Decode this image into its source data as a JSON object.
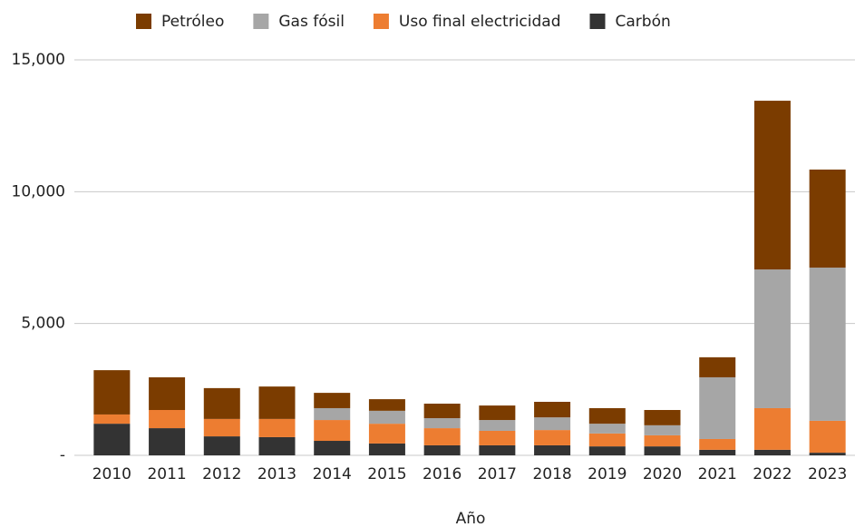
{
  "chart_data": {
    "type": "stacked_bar",
    "x_label": "Año",
    "categories": [
      "2010",
      "2011",
      "2012",
      "2013",
      "2014",
      "2015",
      "2016",
      "2017",
      "2018",
      "2019",
      "2020",
      "2021",
      "2022",
      "2023"
    ],
    "series": [
      {
        "name": "Petróleo",
        "color": "#7b3c00",
        "values": [
          1680,
          1240,
          1170,
          1230,
          580,
          440,
          550,
          550,
          590,
          590,
          580,
          760,
          6400,
          3720
        ]
      },
      {
        "name": "Gas fósil",
        "color": "#a6a6a6",
        "values": [
          0,
          0,
          0,
          0,
          450,
          490,
          380,
          410,
          480,
          370,
          380,
          2340,
          5260,
          5810
        ]
      },
      {
        "name": "Uso final electricidad",
        "color": "#ed7d31",
        "values": [
          350,
          690,
          660,
          690,
          790,
          750,
          650,
          550,
          580,
          490,
          420,
          410,
          1580,
          1210
        ]
      },
      {
        "name": "Carbón",
        "color": "#333333",
        "values": [
          1200,
          1030,
          720,
          690,
          550,
          450,
          380,
          380,
          380,
          340,
          340,
          210,
          210,
          100
        ]
      }
    ],
    "ylim": [
      0,
      15000
    ],
    "yticks": [
      {
        "value": 0,
        "label": "-"
      },
      {
        "value": 5000,
        "label": "5,000"
      },
      {
        "value": 10000,
        "label": "10,000"
      },
      {
        "value": 15000,
        "label": "15,000"
      }
    ],
    "grid": true,
    "legend": "top"
  }
}
